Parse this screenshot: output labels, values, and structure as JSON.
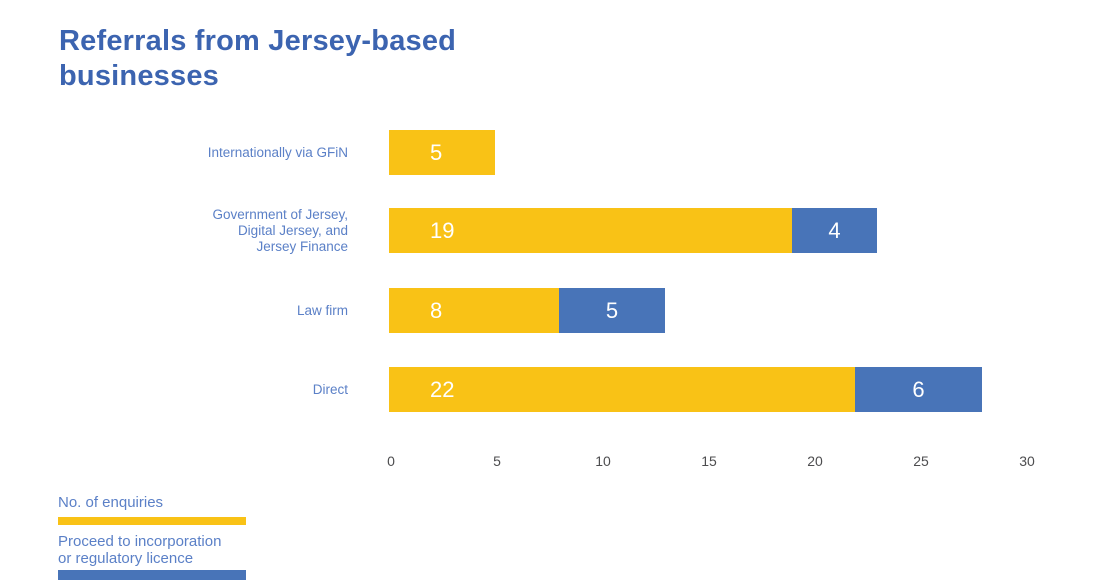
{
  "title": {
    "lines": [
      "Referrals from Jersey-based",
      "businesses"
    ],
    "text": "Referrals from Jersey-based businesses",
    "color": "#3C64B0"
  },
  "chart_data": {
    "type": "bar",
    "orientation": "horizontal",
    "stacked": true,
    "title": "Referrals from Jersey-based businesses",
    "categories": [
      "Internationally via GFiN",
      "Government of Jersey, Digital Jersey, and Jersey Finance",
      "Law firm",
      "Direct"
    ],
    "category_lines": [
      [
        "Internationally via GFiN"
      ],
      [
        "Government of Jersey,",
        "Digital Jersey, and",
        "Jersey Finance"
      ],
      [
        "Law firm"
      ],
      [
        "Direct"
      ]
    ],
    "series": [
      {
        "name": "No. of enquiries",
        "color": "#F9C216",
        "values": [
          5,
          19,
          8,
          22
        ]
      },
      {
        "name": "Proceed to incorporation or regulatory licence",
        "color": "#4874B8",
        "values": [
          0,
          4,
          5,
          6
        ]
      }
    ],
    "xlim": [
      0,
      30
    ],
    "xticks": [
      "0",
      "5",
      "10",
      "15",
      "20",
      "25",
      "30"
    ],
    "grid": false,
    "value_labels": "inside",
    "legend_position": "bottom-left"
  },
  "legend": {
    "items": [
      {
        "label_lines": [
          "No. of enquiries"
        ],
        "color": "#F9C216"
      },
      {
        "label_lines": [
          "Proceed to incorporation",
          "or regulatory licence"
        ],
        "color": "#4874B8"
      }
    ]
  },
  "axis": {
    "tick_color": "#4D4D4F",
    "label_color": "#5B80C7"
  }
}
